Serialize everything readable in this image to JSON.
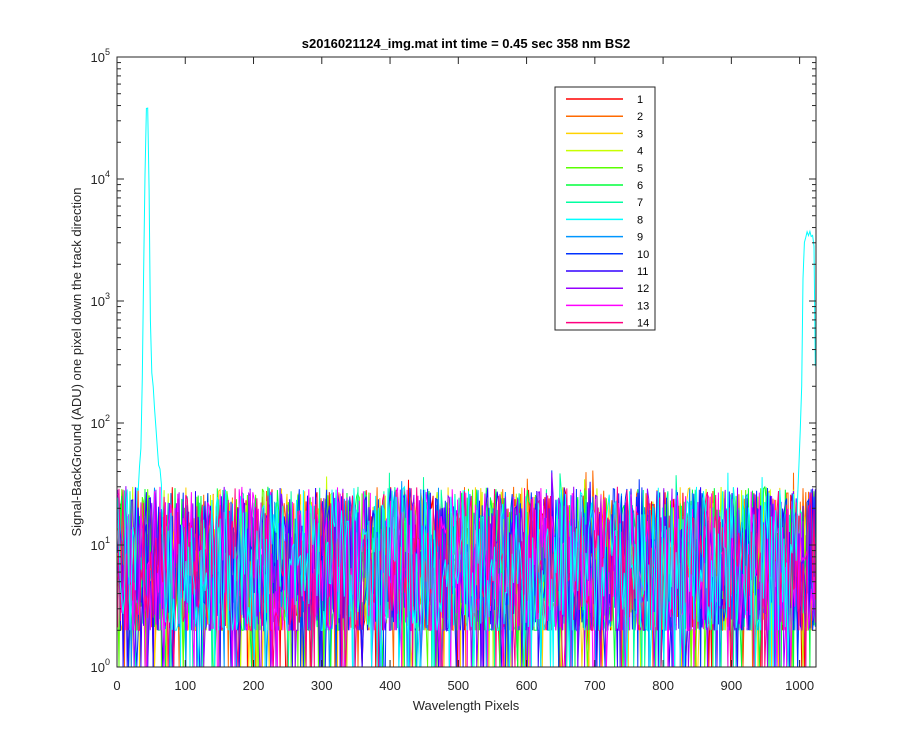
{
  "chart_data": {
    "type": "line",
    "title": "s2016021124_img.mat int time = 0.45 sec  358 nm BS2",
    "xlabel": "Wavelength Pixels",
    "ylabel": "Signal-BackGround (ADU) one pixel down the track direction",
    "xlim": [
      0,
      1024
    ],
    "ylim": [
      1,
      100000
    ],
    "yscale": "log",
    "x_ticks": [
      0,
      100,
      200,
      300,
      400,
      500,
      600,
      700,
      800,
      900,
      1000
    ],
    "x_tick_labels": [
      "0",
      "100",
      "200",
      "300",
      "400",
      "500",
      "600",
      "700",
      "800",
      "900",
      "1000"
    ],
    "y_ticks": [
      1,
      10,
      100,
      1000,
      10000,
      100000
    ],
    "y_tick_labels": [
      {
        "base": "10",
        "exp": "0"
      },
      {
        "base": "10",
        "exp": "1"
      },
      {
        "base": "10",
        "exp": "2"
      },
      {
        "base": "10",
        "exp": "3"
      },
      {
        "base": "10",
        "exp": "4"
      },
      {
        "base": "10",
        "exp": "5"
      }
    ],
    "grid": false,
    "legend_position": "top-right (inside)",
    "noise_floor": {
      "typical_range": [
        2,
        30
      ],
      "max": 45,
      "min": 1
    },
    "series": [
      {
        "name": "1",
        "color": "#ff0000"
      },
      {
        "name": "2",
        "color": "#ff6a00"
      },
      {
        "name": "3",
        "color": "#ffd200"
      },
      {
        "name": "4",
        "color": "#c8ff00"
      },
      {
        "name": "5",
        "color": "#5aff00"
      },
      {
        "name": "6",
        "color": "#00ff3c"
      },
      {
        "name": "7",
        "color": "#00ffa0"
      },
      {
        "name": "8",
        "color": "#00ffff",
        "peaks": [
          {
            "x": [
              30,
              35,
              38,
              40,
              42,
              43,
              44,
              45,
              46,
              47,
              48,
              50,
              53,
              56,
              60,
              63,
              66
            ],
            "y": [
              25,
              60,
              500,
              5000,
              25000,
              40000,
              45000,
              42000,
              30000,
              8000,
              1500,
              300,
              200,
              120,
              55,
              40,
              30
            ]
          },
          {
            "x": [
              998,
              1003,
              1005,
              1007,
              1010,
              1013,
              1016,
              1019,
              1021,
              1022,
              1023,
              1024
            ],
            "y": [
              30,
              200,
              1500,
              3000,
              3700,
              3800,
              3600,
              3300,
              2900,
              1500,
              300,
              70
            ]
          }
        ]
      },
      {
        "name": "9",
        "color": "#0096ff"
      },
      {
        "name": "10",
        "color": "#0032ff"
      },
      {
        "name": "11",
        "color": "#3200ff"
      },
      {
        "name": "12",
        "color": "#9600ff"
      },
      {
        "name": "13",
        "color": "#ff00ff"
      },
      {
        "name": "14",
        "color": "#ff0080"
      }
    ]
  }
}
